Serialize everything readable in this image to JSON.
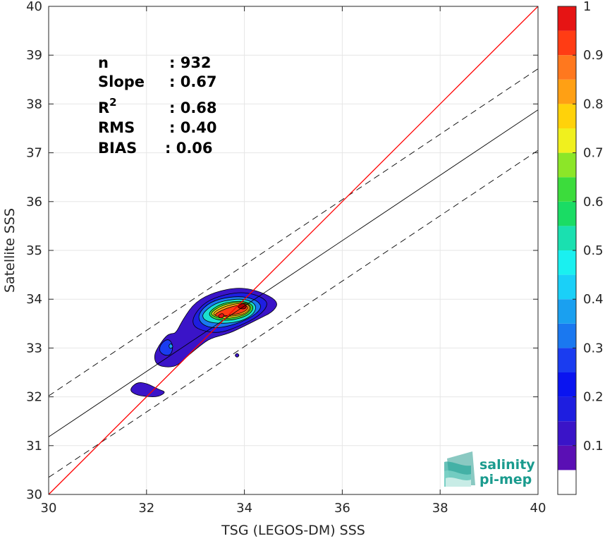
{
  "chart_data": {
    "type": "contour",
    "xlabel": "TSG (LEGOS-DM) SSS",
    "ylabel": "Satellite SSS",
    "xlim": [
      30,
      40
    ],
    "ylim": [
      30,
      40
    ],
    "x_ticks": [
      30,
      32,
      34,
      36,
      38,
      40
    ],
    "y_ticks": [
      30,
      31,
      32,
      33,
      34,
      35,
      36,
      37,
      38,
      39,
      40
    ],
    "grid": true,
    "stats": {
      "n": {
        "label": "n",
        "value": ": 932"
      },
      "slope": {
        "label": "Slope",
        "value": ": 0.67"
      },
      "r2": {
        "label": "R",
        "superscript": "2",
        "value": ": 0.68"
      },
      "rms": {
        "label": "RMS",
        "value": ": 0.40"
      },
      "bias": {
        "label": "BIAS",
        "value": ": 0.06"
      }
    },
    "lines": {
      "identity": {
        "color": "#ff0000",
        "x": [
          30,
          40
        ],
        "y": [
          30,
          40
        ]
      },
      "regression": {
        "color": "#000000",
        "x": [
          30,
          40
        ],
        "y": [
          31.18,
          37.88
        ]
      },
      "upper_bound": {
        "color": "#000000",
        "dashed": true,
        "x": [
          30,
          40
        ],
        "y": [
          32.02,
          38.72
        ]
      },
      "lower_bound": {
        "color": "#000000",
        "dashed": true,
        "x": [
          30,
          40
        ],
        "y": [
          30.35,
          37.05
        ]
      }
    },
    "density_contours": [
      {
        "level": 0.05,
        "color": "#3a14c8",
        "points": [
          [
            32.6,
            33.3
          ],
          [
            32.75,
            33.6
          ],
          [
            33.0,
            33.95
          ],
          [
            33.4,
            34.15
          ],
          [
            33.9,
            34.25
          ],
          [
            34.35,
            34.15
          ],
          [
            34.7,
            33.95
          ],
          [
            34.6,
            33.75
          ],
          [
            34.3,
            33.6
          ],
          [
            34.0,
            33.45
          ],
          [
            33.7,
            33.3
          ],
          [
            33.3,
            33.2
          ],
          [
            33.1,
            33.05
          ],
          [
            32.85,
            32.85
          ],
          [
            32.65,
            32.65
          ],
          [
            32.45,
            32.6
          ],
          [
            32.2,
            32.65
          ],
          [
            32.15,
            32.85
          ],
          [
            32.25,
            33.05
          ],
          [
            32.4,
            33.25
          ],
          [
            32.5,
            33.3
          ]
        ]
      },
      {
        "level": 0.05,
        "color": "#3a14c8",
        "points": [
          [
            31.65,
            32.15
          ],
          [
            31.8,
            32.3
          ],
          [
            32.0,
            32.28
          ],
          [
            32.25,
            32.15
          ],
          [
            32.4,
            32.1
          ],
          [
            32.25,
            32.0
          ],
          [
            32.0,
            32.0
          ],
          [
            31.75,
            32.05
          ]
        ]
      },
      {
        "level": 0.05,
        "color": "#3a14c8",
        "points": [
          [
            33.8,
            32.85
          ],
          [
            33.85,
            32.9
          ],
          [
            33.9,
            32.85
          ],
          [
            33.85,
            32.8
          ]
        ]
      },
      {
        "level": 0.2,
        "color": "#1a3cf0",
        "points": [
          [
            32.3,
            33.1
          ],
          [
            32.45,
            33.2
          ],
          [
            32.55,
            33.05
          ],
          [
            32.5,
            32.85
          ],
          [
            32.35,
            32.85
          ],
          [
            32.25,
            32.95
          ]
        ]
      },
      {
        "level": 0.35,
        "color": "#1aa0f0",
        "points": [
          [
            32.45,
            33.05
          ],
          [
            32.5,
            33.1
          ],
          [
            32.55,
            33.02
          ],
          [
            32.48,
            32.98
          ]
        ]
      },
      {
        "level": 0.15,
        "color": "#1e1ee0",
        "points": [
          [
            32.95,
            33.65
          ],
          [
            33.2,
            33.95
          ],
          [
            33.6,
            34.1
          ],
          [
            34.0,
            34.15
          ],
          [
            34.35,
            34.05
          ],
          [
            34.5,
            33.9
          ],
          [
            34.3,
            33.65
          ],
          [
            33.9,
            33.45
          ],
          [
            33.5,
            33.3
          ],
          [
            33.15,
            33.35
          ],
          [
            32.95,
            33.45
          ]
        ]
      },
      {
        "level": 0.3,
        "color": "#1a78f0",
        "points": [
          [
            33.05,
            33.7
          ],
          [
            33.3,
            33.95
          ],
          [
            33.7,
            34.05
          ],
          [
            34.05,
            34.05
          ],
          [
            34.3,
            33.95
          ],
          [
            34.35,
            33.8
          ],
          [
            34.1,
            33.6
          ],
          [
            33.7,
            33.45
          ],
          [
            33.35,
            33.4
          ],
          [
            33.1,
            33.5
          ]
        ]
      },
      {
        "level": 0.45,
        "color": "#1ae0d0",
        "points": [
          [
            33.15,
            33.72
          ],
          [
            33.4,
            33.92
          ],
          [
            33.75,
            34.0
          ],
          [
            34.05,
            34.0
          ],
          [
            34.25,
            33.88
          ],
          [
            34.2,
            33.7
          ],
          [
            33.95,
            33.55
          ],
          [
            33.6,
            33.5
          ],
          [
            33.3,
            33.52
          ],
          [
            33.15,
            33.6
          ]
        ]
      },
      {
        "level": 0.55,
        "color": "#3cdc3c",
        "points": [
          [
            33.25,
            33.72
          ],
          [
            33.5,
            33.9
          ],
          [
            33.8,
            33.96
          ],
          [
            34.05,
            33.95
          ],
          [
            34.2,
            33.85
          ],
          [
            34.12,
            33.7
          ],
          [
            33.9,
            33.6
          ],
          [
            33.6,
            33.56
          ],
          [
            33.35,
            33.6
          ]
        ]
      },
      {
        "level": 0.65,
        "color": "#f0f01e",
        "points": [
          [
            33.3,
            33.72
          ],
          [
            33.55,
            33.88
          ],
          [
            33.85,
            33.94
          ],
          [
            34.07,
            33.92
          ],
          [
            34.15,
            33.82
          ],
          [
            34.05,
            33.7
          ],
          [
            33.85,
            33.63
          ],
          [
            33.6,
            33.6
          ],
          [
            33.38,
            33.64
          ]
        ]
      },
      {
        "level": 0.75,
        "color": "#ffa014",
        "points": [
          [
            33.35,
            33.72
          ],
          [
            33.6,
            33.86
          ],
          [
            33.9,
            33.92
          ],
          [
            34.08,
            33.9
          ],
          [
            34.12,
            33.8
          ],
          [
            34.0,
            33.7
          ],
          [
            33.82,
            33.66
          ],
          [
            33.58,
            33.64
          ],
          [
            33.4,
            33.66
          ]
        ]
      },
      {
        "level": 0.85,
        "color": "#ff3c14",
        "points": [
          [
            33.4,
            33.7
          ],
          [
            33.6,
            33.8
          ],
          [
            33.85,
            33.88
          ],
          [
            34.05,
            33.88
          ],
          [
            34.08,
            33.8
          ],
          [
            33.95,
            33.72
          ],
          [
            33.75,
            33.68
          ],
          [
            33.55,
            33.65
          ],
          [
            33.42,
            33.65
          ]
        ]
      },
      {
        "level": 0.92,
        "color": "#e61414",
        "points": [
          [
            33.45,
            33.66
          ],
          [
            33.55,
            33.72
          ],
          [
            33.6,
            33.66
          ],
          [
            33.52,
            33.6
          ]
        ]
      },
      {
        "level": 0.95,
        "color": "#b40000",
        "points": [
          [
            33.85,
            33.85
          ],
          [
            33.95,
            33.92
          ],
          [
            34.05,
            33.88
          ],
          [
            34.02,
            33.8
          ],
          [
            33.92,
            33.8
          ]
        ]
      }
    ],
    "colorbar": {
      "ticks": [
        "0.1",
        "0.2",
        "0.3",
        "0.4",
        "0.5",
        "0.6",
        "0.7",
        "0.8",
        "0.9",
        "1"
      ],
      "levels": [
        0,
        0.05,
        0.1,
        0.15,
        0.2,
        0.25,
        0.3,
        0.35,
        0.4,
        0.45,
        0.5,
        0.55,
        0.6,
        0.65,
        0.7,
        0.75,
        0.8,
        0.85,
        0.9,
        0.95,
        1
      ],
      "colors": [
        "#ffffff",
        "#5a0fb4",
        "#3a14c8",
        "#1e1ee0",
        "#0a14f0",
        "#1a3cf0",
        "#1a78f0",
        "#1aa0f0",
        "#1ad0f8",
        "#1af0f0",
        "#1ae0b0",
        "#1adc64",
        "#3cdc3c",
        "#8ce628",
        "#f0f01e",
        "#ffd20a",
        "#ffa014",
        "#ff781e",
        "#ff3c14",
        "#e61414",
        "#b40000"
      ]
    }
  },
  "logo": {
    "line1": "salinity",
    "line2": "pi-mep"
  }
}
